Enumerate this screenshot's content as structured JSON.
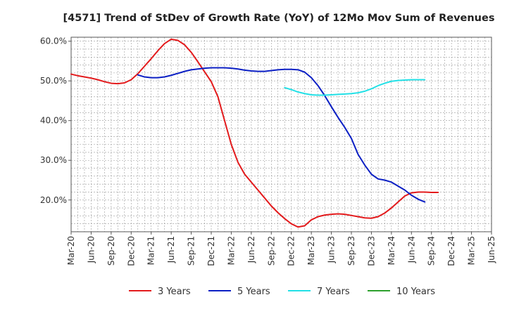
{
  "chart_data": {
    "type": "line",
    "title": "[4571]  Trend of StDev of Growth Rate (YoY) of 12Mo Mov Sum of Revenues",
    "xlabel": "",
    "ylabel": "",
    "ylim": [
      12,
      61
    ],
    "y_ticks": [
      20,
      30,
      40,
      50,
      60
    ],
    "y_tick_labels": [
      "20.0%",
      "30.0%",
      "40.0%",
      "50.0%",
      "60.0%"
    ],
    "x_tick_labels": [
      "Mar-20",
      "Jun-20",
      "Sep-20",
      "Dec-20",
      "Mar-21",
      "Jun-21",
      "Sep-21",
      "Dec-21",
      "Mar-22",
      "Jun-22",
      "Sep-22",
      "Dec-22",
      "Mar-23",
      "Jun-23",
      "Sep-23",
      "Dec-23",
      "Mar-24",
      "Jun-24",
      "Sep-24",
      "Dec-24",
      "Mar-25",
      "Jun-25"
    ],
    "grid": true,
    "legend_position": "bottom",
    "series": [
      {
        "name": "3 Years",
        "color": "#e31a1c",
        "start_index": 0,
        "values": [
          51.7,
          51.3,
          51.0,
          50.7,
          50.3,
          49.8,
          49.4,
          49.3,
          49.5,
          50.3,
          51.8,
          53.7,
          55.6,
          57.6,
          59.4,
          60.5,
          60.2,
          59.1,
          57.2,
          54.8,
          52.3,
          49.8,
          46.0,
          40.0,
          34.0,
          29.5,
          26.5,
          24.5,
          22.5,
          20.5,
          18.5,
          16.8,
          15.3,
          14.0,
          13.2,
          13.5,
          15.0,
          15.8,
          16.2,
          16.4,
          16.5,
          16.4,
          16.1,
          15.8,
          15.5,
          15.4,
          15.8,
          16.7,
          18.0,
          19.5,
          21.0,
          21.8,
          22.0,
          22.0,
          21.9,
          21.9
        ]
      },
      {
        "name": "5 Years",
        "color": "#0b1fc4",
        "start_index": 10,
        "values": [
          51.5,
          51.0,
          50.8,
          50.8,
          51.0,
          51.4,
          51.9,
          52.4,
          52.8,
          53.0,
          53.2,
          53.3,
          53.3,
          53.3,
          53.2,
          53.0,
          52.7,
          52.5,
          52.4,
          52.4,
          52.6,
          52.8,
          52.9,
          52.9,
          52.8,
          52.2,
          50.8,
          48.8,
          46.3,
          43.5,
          40.8,
          38.3,
          35.5,
          31.5,
          28.8,
          26.5,
          25.3,
          25.0,
          24.5,
          23.5,
          22.5,
          21.2,
          20.2,
          19.5
        ]
      },
      {
        "name": "7 Years",
        "color": "#22e0e6",
        "start_index": 32,
        "values": [
          48.3,
          47.8,
          47.2,
          46.8,
          46.5,
          46.4,
          46.4,
          46.5,
          46.6,
          46.7,
          46.8,
          47.0,
          47.4,
          48.0,
          48.8,
          49.4,
          49.9,
          50.1,
          50.2,
          50.3,
          50.3,
          50.3
        ]
      },
      {
        "name": "10 Years",
        "color": "#2ca02c",
        "start_index": 0,
        "values": []
      }
    ]
  }
}
